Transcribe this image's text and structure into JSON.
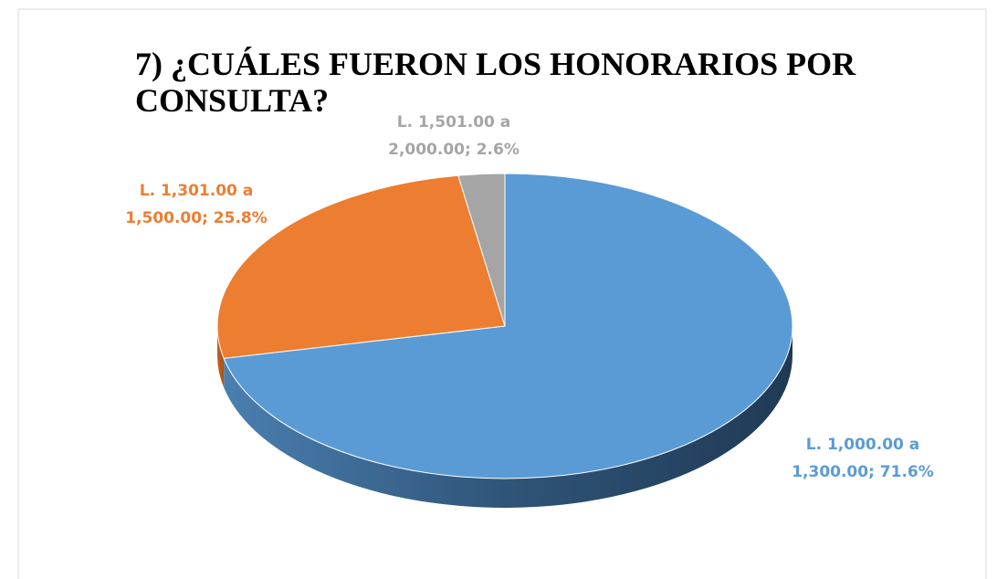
{
  "chart_data": {
    "type": "pie",
    "title": "7) ¿CUÁLES FUERON LOS HONORARIOS POR CONSULTA?",
    "values": [
      71.6,
      25.8,
      2.6
    ],
    "value_labels": [
      "L. 1,000.00 a 1,300.00; 71.6%",
      "L. 1,301.00 a 1,500.00; 25.8%",
      "L. 1,501.00 a 2,000.00; 2.6%"
    ],
    "colors": [
      "#5b9bd5",
      "#ed7d31",
      "#a5a5a5"
    ]
  }
}
